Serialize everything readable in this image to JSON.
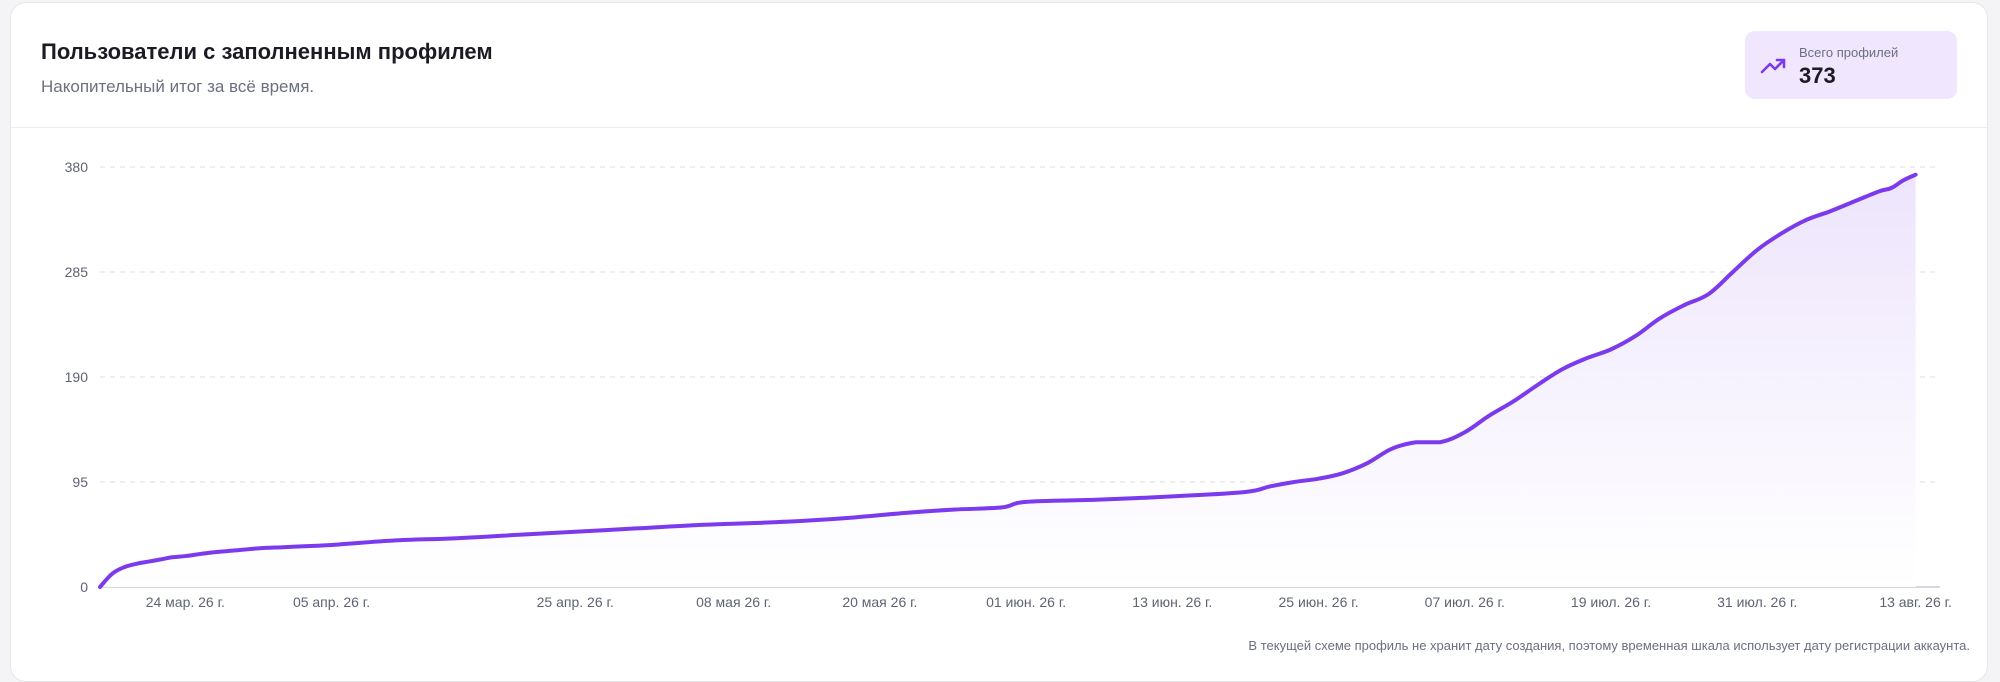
{
  "header": {
    "title": "Пользователи с заполненным профилем",
    "subtitle": "Накопительный итог за всё время."
  },
  "stat": {
    "icon": "trending-up-icon",
    "label": "Всего профилей",
    "value": "373"
  },
  "footnote": "В текущей схеме профиль не хранит дату создания, поэтому временная шкала использует дату регистрации аккаунта.",
  "colors": {
    "line": "#7c3aed",
    "area_top": "#ece3fc",
    "area_bottom": "#ffffff",
    "grid": "#e4e4ea",
    "stat_bg": "#f0e6fd",
    "accent": "#7c3aed"
  },
  "chart_data": {
    "type": "area",
    "title": "Пользователи с заполненным профилем",
    "subtitle": "Накопительный итог за всё время.",
    "xlabel": "",
    "ylabel": "",
    "ylim": [
      0,
      380
    ],
    "yticks": [
      0,
      95,
      190,
      285,
      380
    ],
    "grid": true,
    "legend": "none",
    "xticks": [
      {
        "date": "2026-03-24",
        "label": "24 мар. 26 г."
      },
      {
        "date": "2026-04-05",
        "label": "05 апр. 26 г."
      },
      {
        "date": "2026-04-25",
        "label": "25 апр. 26 г."
      },
      {
        "date": "2026-05-08",
        "label": "08 мая 26 г."
      },
      {
        "date": "2026-05-20",
        "label": "20 мая 26 г."
      },
      {
        "date": "2026-06-01",
        "label": "01 июн. 26 г."
      },
      {
        "date": "2026-06-13",
        "label": "13 июн. 26 г."
      },
      {
        "date": "2026-06-25",
        "label": "25 июн. 26 г."
      },
      {
        "date": "2026-07-07",
        "label": "07 июл. 26 г."
      },
      {
        "date": "2026-07-19",
        "label": "19 июл. 26 г."
      },
      {
        "date": "2026-07-31",
        "label": "31 июл. 26 г."
      },
      {
        "date": "2026-08-13",
        "label": "13 авг. 26 г."
      }
    ],
    "series": [
      {
        "x": [
          "2026-03-17",
          "2026-03-18",
          "2026-03-19",
          "2026-03-20",
          "2026-03-21",
          "2026-03-22",
          "2026-03-23",
          "2026-03-24",
          "2026-03-26",
          "2026-03-28",
          "2026-03-30",
          "2026-04-01",
          "2026-04-03",
          "2026-04-05",
          "2026-04-10",
          "2026-04-15",
          "2026-04-20",
          "2026-04-25",
          "2026-04-30",
          "2026-05-05",
          "2026-05-10",
          "2026-05-14",
          "2026-05-18",
          "2026-05-22",
          "2026-05-26",
          "2026-05-30",
          "2026-06-01",
          "2026-06-07",
          "2026-06-13",
          "2026-06-19",
          "2026-06-21",
          "2026-06-23",
          "2026-06-25",
          "2026-06-27",
          "2026-06-29",
          "2026-07-01",
          "2026-07-03",
          "2026-07-05",
          "2026-07-07",
          "2026-07-09",
          "2026-07-11",
          "2026-07-13",
          "2026-07-15",
          "2026-07-17",
          "2026-07-19",
          "2026-07-21",
          "2026-07-23",
          "2026-07-25",
          "2026-07-27",
          "2026-07-29",
          "2026-07-31",
          "2026-08-02",
          "2026-08-04",
          "2026-08-06",
          "2026-08-08",
          "2026-08-10",
          "2026-08-11",
          "2026-08-12",
          "2026-08-13"
        ],
        "values": [
          0,
          12,
          18,
          21,
          23,
          25,
          27,
          28,
          31,
          33,
          35,
          36,
          37,
          38,
          42,
          44,
          47,
          50,
          53,
          56,
          58,
          60,
          63,
          67,
          70,
          72,
          77,
          79,
          82,
          86,
          91,
          95,
          98,
          103,
          112,
          125,
          131,
          131,
          140,
          155,
          168,
          183,
          197,
          207,
          215,
          227,
          243,
          255,
          265,
          285,
          305,
          320,
          332,
          340,
          349,
          358,
          361,
          368,
          373
        ]
      }
    ]
  }
}
